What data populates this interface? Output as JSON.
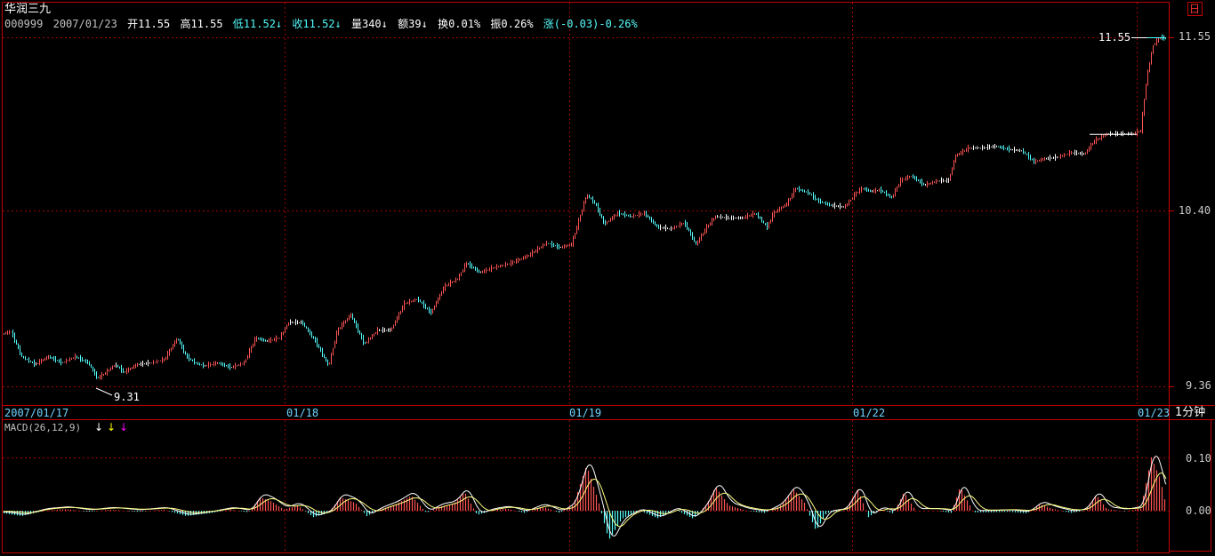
{
  "stock": {
    "name": "华润三九",
    "code": "000999",
    "date": "2007/01/23",
    "open_label": "开11.55",
    "high_label": "高11.55",
    "low_label": "低11.52",
    "close_label": "收11.52",
    "volume_label": "量340",
    "amount_label": "额39",
    "turnover_label": "换0.01%",
    "amplitude_label": "振0.26%",
    "change_label": "涨(-0.03)-0.26%"
  },
  "toolbar": {
    "corner_label": "日"
  },
  "price_axis": {
    "labels": [
      "11.55",
      "10.40",
      "9.36"
    ]
  },
  "markers": {
    "high_value": "11.55",
    "low_value": "9.31"
  },
  "time_axis": {
    "labels": [
      "2007/01/17",
      "01/18",
      "01/19",
      "01/22",
      "01/23"
    ],
    "period": "1分钟"
  },
  "macd": {
    "title": "MACD(26,12,9)",
    "arrow_colors": [
      "#ffffff",
      "#ffff00",
      "#ff00ff"
    ],
    "axis_labels": [
      "0.10",
      "0.00"
    ]
  },
  "colors": {
    "up": "#ff5454",
    "down": "#54fcfc",
    "grid": "#a00000",
    "border": "#c00000",
    "ma": "#ffffff",
    "signal": "#ffff80"
  },
  "chart_data": {
    "type": "line",
    "title": "华润三九",
    "price_ylim": [
      9.31,
      11.55
    ],
    "price_anchors": [
      [
        0,
        9.65
      ],
      [
        8,
        9.66
      ],
      [
        20,
        9.5
      ],
      [
        35,
        9.45
      ],
      [
        50,
        9.5
      ],
      [
        65,
        9.46
      ],
      [
        80,
        9.5
      ],
      [
        95,
        9.46
      ],
      [
        105,
        9.36
      ],
      [
        115,
        9.4
      ],
      [
        125,
        9.45
      ],
      [
        135,
        9.4
      ],
      [
        150,
        9.45
      ],
      [
        165,
        9.46
      ],
      [
        180,
        9.48
      ],
      [
        195,
        9.62
      ],
      [
        205,
        9.5
      ],
      [
        215,
        9.46
      ],
      [
        225,
        9.44
      ],
      [
        240,
        9.46
      ],
      [
        255,
        9.43
      ],
      [
        270,
        9.46
      ],
      [
        283,
        9.62
      ],
      [
        295,
        9.6
      ],
      [
        310,
        9.62
      ],
      [
        320,
        9.72
      ],
      [
        335,
        9.72
      ],
      [
        350,
        9.6
      ],
      [
        365,
        9.44
      ],
      [
        375,
        9.67
      ],
      [
        390,
        9.77
      ],
      [
        405,
        9.58
      ],
      [
        420,
        9.67
      ],
      [
        435,
        9.67
      ],
      [
        450,
        9.84
      ],
      [
        465,
        9.87
      ],
      [
        480,
        9.78
      ],
      [
        495,
        9.95
      ],
      [
        510,
        10.0
      ],
      [
        520,
        10.1
      ],
      [
        535,
        10.04
      ],
      [
        550,
        10.07
      ],
      [
        570,
        10.1
      ],
      [
        590,
        10.15
      ],
      [
        610,
        10.23
      ],
      [
        625,
        10.2
      ],
      [
        638,
        10.22
      ],
      [
        645,
        10.35
      ],
      [
        655,
        10.54
      ],
      [
        665,
        10.48
      ],
      [
        675,
        10.35
      ],
      [
        690,
        10.42
      ],
      [
        705,
        10.4
      ],
      [
        720,
        10.42
      ],
      [
        735,
        10.33
      ],
      [
        750,
        10.32
      ],
      [
        765,
        10.36
      ],
      [
        778,
        10.22
      ],
      [
        790,
        10.33
      ],
      [
        800,
        10.4
      ],
      [
        815,
        10.39
      ],
      [
        830,
        10.39
      ],
      [
        845,
        10.42
      ],
      [
        858,
        10.33
      ],
      [
        865,
        10.42
      ],
      [
        880,
        10.48
      ],
      [
        890,
        10.58
      ],
      [
        905,
        10.55
      ],
      [
        915,
        10.5
      ],
      [
        930,
        10.47
      ],
      [
        945,
        10.46
      ],
      [
        958,
        10.55
      ],
      [
        965,
        10.58
      ],
      [
        975,
        10.56
      ],
      [
        985,
        10.57
      ],
      [
        998,
        10.52
      ],
      [
        1008,
        10.63
      ],
      [
        1020,
        10.66
      ],
      [
        1035,
        10.6
      ],
      [
        1050,
        10.63
      ],
      [
        1062,
        10.63
      ],
      [
        1070,
        10.79
      ],
      [
        1085,
        10.84
      ],
      [
        1100,
        10.84
      ],
      [
        1115,
        10.85
      ],
      [
        1130,
        10.83
      ],
      [
        1145,
        10.82
      ],
      [
        1158,
        10.75
      ],
      [
        1170,
        10.77
      ],
      [
        1185,
        10.78
      ],
      [
        1200,
        10.81
      ],
      [
        1215,
        10.8
      ],
      [
        1225,
        10.88
      ],
      [
        1240,
        10.93
      ],
      [
        1255,
        10.93
      ],
      [
        1270,
        10.93
      ],
      [
        1278,
        10.95
      ],
      [
        1285,
        11.3
      ],
      [
        1292,
        11.5
      ],
      [
        1300,
        11.55
      ],
      [
        1311,
        11.53
      ]
    ],
    "macd_ylim": [
      -0.06,
      0.15
    ],
    "macd_anchors": [
      [
        0,
        -0.005
      ],
      [
        20,
        -0.01
      ],
      [
        45,
        0.0
      ],
      [
        70,
        0.003
      ],
      [
        95,
        -0.002
      ],
      [
        120,
        0.002
      ],
      [
        150,
        -0.002
      ],
      [
        180,
        0.002
      ],
      [
        205,
        -0.01
      ],
      [
        230,
        -0.005
      ],
      [
        255,
        0.002
      ],
      [
        275,
        -0.003
      ],
      [
        288,
        0.025
      ],
      [
        300,
        0.018
      ],
      [
        315,
        0.002
      ],
      [
        330,
        0.01
      ],
      [
        348,
        -0.012
      ],
      [
        365,
        -0.004
      ],
      [
        378,
        0.025
      ],
      [
        395,
        0.015
      ],
      [
        408,
        -0.01
      ],
      [
        422,
        0.002
      ],
      [
        440,
        0.012
      ],
      [
        458,
        0.028
      ],
      [
        475,
        -0.004
      ],
      [
        490,
        0.008
      ],
      [
        505,
        0.012
      ],
      [
        518,
        0.035
      ],
      [
        532,
        -0.008
      ],
      [
        548,
        0.0
      ],
      [
        565,
        0.004
      ],
      [
        585,
        -0.004
      ],
      [
        605,
        0.008
      ],
      [
        625,
        -0.004
      ],
      [
        640,
        0.01
      ],
      [
        655,
        0.085
      ],
      [
        668,
        0.02
      ],
      [
        680,
        -0.055
      ],
      [
        695,
        -0.015
      ],
      [
        715,
        0.0
      ],
      [
        735,
        -0.014
      ],
      [
        755,
        0.002
      ],
      [
        775,
        -0.015
      ],
      [
        790,
        0.012
      ],
      [
        800,
        0.045
      ],
      [
        815,
        0.01
      ],
      [
        835,
        0.0
      ],
      [
        855,
        -0.004
      ],
      [
        872,
        0.008
      ],
      [
        888,
        0.04
      ],
      [
        900,
        0.015
      ],
      [
        913,
        -0.038
      ],
      [
        925,
        -0.004
      ],
      [
        945,
        0.0
      ],
      [
        960,
        0.04
      ],
      [
        972,
        -0.012
      ],
      [
        985,
        0.003
      ],
      [
        1000,
        -0.005
      ],
      [
        1012,
        0.035
      ],
      [
        1025,
        0.0
      ],
      [
        1050,
        0.0
      ],
      [
        1065,
        -0.004
      ],
      [
        1075,
        0.045
      ],
      [
        1090,
        -0.003
      ],
      [
        1110,
        -0.003
      ],
      [
        1130,
        -0.002
      ],
      [
        1150,
        -0.005
      ],
      [
        1165,
        0.012
      ],
      [
        1180,
        0.003
      ],
      [
        1200,
        -0.004
      ],
      [
        1215,
        0.0
      ],
      [
        1228,
        0.03
      ],
      [
        1240,
        0.003
      ],
      [
        1260,
        -0.001
      ],
      [
        1278,
        0.004
      ],
      [
        1290,
        0.1
      ],
      [
        1300,
        0.06
      ],
      [
        1311,
        -0.025
      ]
    ]
  }
}
